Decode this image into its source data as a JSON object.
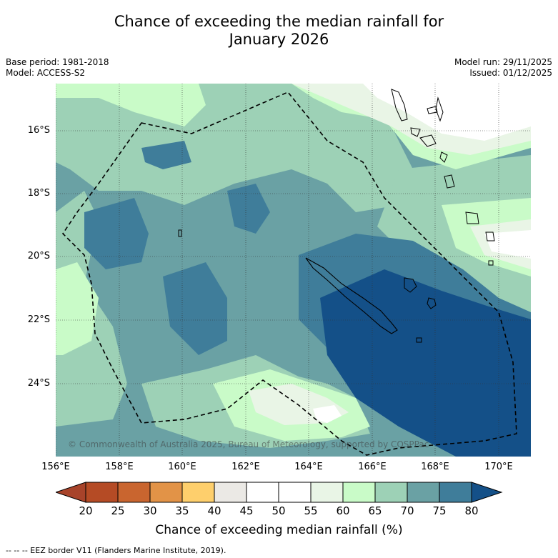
{
  "title": {
    "line1": "Chance of exceeding the median rainfall for",
    "line2": "January 2026"
  },
  "meta": {
    "base_period": "Base period: 1981-2018",
    "model": "Model: ACCESS-S2",
    "model_run": "Model run: 29/11/2025",
    "issued": "Issued: 01/12/2025"
  },
  "map": {
    "copyright": "© Commonwealth of Australia 2025, Bureau of Meteorology, supported by COSPPac",
    "lat_labels": [
      "16°S",
      "18°S",
      "20°S",
      "22°S",
      "24°S"
    ],
    "lon_labels": [
      "156°E",
      "158°E",
      "160°E",
      "162°E",
      "164°E",
      "166°E",
      "168°E",
      "170°E"
    ]
  },
  "colorbar": {
    "ticks": [
      "20",
      "25",
      "30",
      "35",
      "40",
      "45",
      "50",
      "55",
      "60",
      "65",
      "70",
      "75",
      "80"
    ],
    "colors": [
      "#a8432a",
      "#b54b25",
      "#c9652f",
      "#e29347",
      "#fecf6c",
      "#ebe9e5",
      "#ffffff",
      "#ffffff",
      "#e9f5e6",
      "#c9fbc8",
      "#9dd1b6",
      "#6aa1a4",
      "#3f7d9a",
      "#145088"
    ],
    "label": "Chance of exceeding median rainfall (%)"
  },
  "footnote": "--  --  -- EEZ border V11 (Flanders Marine Institute, 2019)."
}
